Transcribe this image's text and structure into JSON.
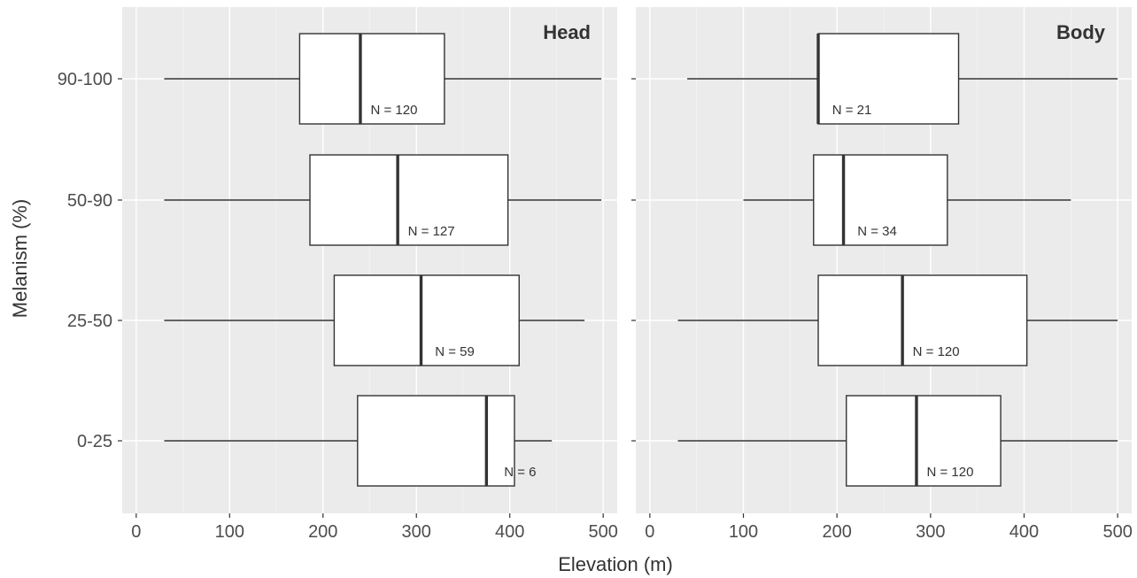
{
  "chart_data": {
    "type": "boxplot",
    "orientation": "horizontal",
    "xlabel": "Elevation (m)",
    "ylabel": "Melanism (%)",
    "xlim": [
      -15,
      515
    ],
    "x_ticks": [
      0,
      100,
      200,
      300,
      400,
      500
    ],
    "categories": [
      "0-25",
      "25-50",
      "50-90",
      "90-100"
    ],
    "grid": true,
    "panels": [
      {
        "facet": "Head",
        "boxes": [
          {
            "category": "0-25",
            "min": 30,
            "q1": 237,
            "median": 375,
            "q3": 405,
            "max": 445,
            "n_label": "N = 6"
          },
          {
            "category": "25-50",
            "min": 30,
            "q1": 212,
            "median": 305,
            "q3": 410,
            "max": 480,
            "n_label": "N = 59"
          },
          {
            "category": "50-90",
            "min": 30,
            "q1": 186,
            "median": 280,
            "q3": 398,
            "max": 498,
            "n_label": "N = 127"
          },
          {
            "category": "90-100",
            "min": 30,
            "q1": 175,
            "median": 240,
            "q3": 330,
            "max": 498,
            "n_label": "N = 120"
          }
        ]
      },
      {
        "facet": "Body",
        "boxes": [
          {
            "category": "0-25",
            "min": 30,
            "q1": 210,
            "median": 285,
            "q3": 375,
            "max": 500,
            "n_label": "N = 120"
          },
          {
            "category": "25-50",
            "min": 30,
            "q1": 180,
            "median": 270,
            "q3": 403,
            "max": 500,
            "n_label": "N = 120"
          },
          {
            "category": "50-90",
            "min": 100,
            "q1": 175,
            "median": 207,
            "q3": 318,
            "max": 450,
            "n_label": "N = 34"
          },
          {
            "category": "90-100",
            "min": 40,
            "q1": 180,
            "median": 180,
            "q3": 330,
            "max": 500,
            "n_label": "N = 21"
          }
        ]
      }
    ]
  }
}
